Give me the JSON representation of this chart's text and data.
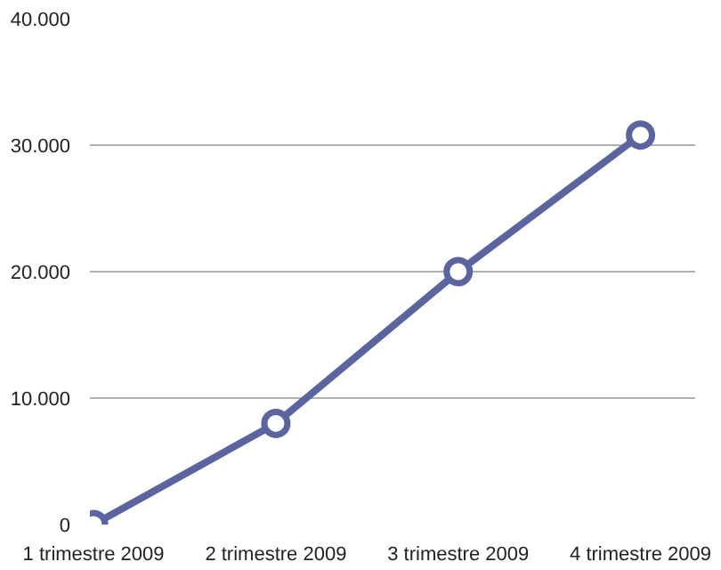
{
  "chart_data": {
    "type": "line",
    "categories": [
      "1 trimestre 2009",
      "2 trimestre 2009",
      "3 trimestre 2009",
      "4 trimestre 2009"
    ],
    "series": [
      {
        "color": "#5a65a0",
        "values": [
          0,
          8000,
          20000,
          30800
        ]
      }
    ],
    "ylim": [
      0,
      40000
    ],
    "yticks": [
      {
        "value": 0,
        "label": "0"
      },
      {
        "value": 10000,
        "label": "10.000"
      },
      {
        "value": 20000,
        "label": "20.000"
      },
      {
        "value": 30000,
        "label": "30.000"
      },
      {
        "value": 40000,
        "label": "40.000"
      }
    ],
    "grid": "y",
    "marker": "circle",
    "line_style": "solid"
  }
}
